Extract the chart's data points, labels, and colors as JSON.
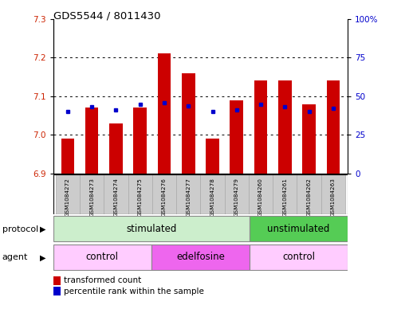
{
  "title": "GDS5544 / 8011430",
  "samples": [
    "GSM1084272",
    "GSM1084273",
    "GSM1084274",
    "GSM1084275",
    "GSM1084276",
    "GSM1084277",
    "GSM1084278",
    "GSM1084279",
    "GSM1084260",
    "GSM1084261",
    "GSM1084262",
    "GSM1084263"
  ],
  "transformed_count": [
    6.99,
    7.07,
    7.03,
    7.07,
    7.21,
    7.16,
    6.99,
    7.09,
    7.14,
    7.14,
    7.08,
    7.14
  ],
  "percentile_rank": [
    40,
    43,
    41,
    45,
    46,
    44,
    40,
    41,
    45,
    43,
    40,
    42
  ],
  "ylim_left": [
    6.9,
    7.3
  ],
  "ylim_right": [
    0,
    100
  ],
  "yticks_left": [
    6.9,
    7.0,
    7.1,
    7.2,
    7.3
  ],
  "yticks_right": [
    0,
    25,
    50,
    75,
    100
  ],
  "ytick_labels_right": [
    "0",
    "25",
    "50",
    "75",
    "100%"
  ],
  "bar_color": "#cc0000",
  "dot_color": "#0000cc",
  "baseline": 6.9,
  "stim_count": 8,
  "unstim_count": 4,
  "control1_count": 4,
  "edelfosine_count": 4,
  "control2_count": 4,
  "protocol_stimulated_label": "stimulated",
  "protocol_unstimulated_label": "unstimulated",
  "agent_control_label": "control",
  "agent_edelfosine_label": "edelfosine",
  "protocol_stim_color": "#cceecc",
  "protocol_unstim_color": "#55cc55",
  "agent_control_color": "#ffccff",
  "agent_edelfosine_color": "#ee66ee",
  "legend_red_label": "transformed count",
  "legend_blue_label": "percentile rank within the sample",
  "background_color": "#ffffff",
  "tick_label_color_left": "#cc2200",
  "tick_label_color_right": "#0000cc",
  "label_bg_color": "#cccccc",
  "label_bg_edge": "#aaaaaa"
}
